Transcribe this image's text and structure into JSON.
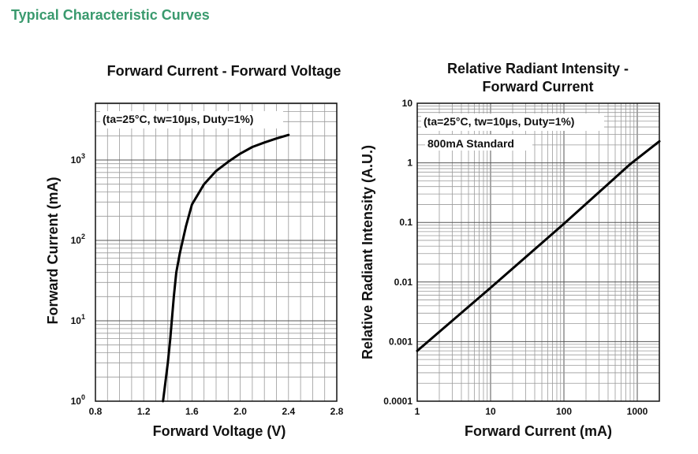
{
  "page": {
    "section_title": "Typical Characteristic Curves"
  },
  "chart_data": [
    {
      "type": "line",
      "title": "Forward Current - Forward Voltage",
      "xlabel": "Forward Voltage (V)",
      "ylabel": "Forward Current (mA)",
      "annotation": "(ta=25°C, tw=10µs, Duty=1%)",
      "xscale": "linear",
      "yscale": "log",
      "xlim": [
        0.8,
        2.8
      ],
      "ylim": [
        1,
        5000
      ],
      "x_ticks": [
        "0.8",
        "1.2",
        "1.6",
        "2.0",
        "2.4",
        "2.8"
      ],
      "y_ticks": [
        {
          "value": 1,
          "base": "10",
          "exp": "0"
        },
        {
          "value": 10,
          "base": "10",
          "exp": "1"
        },
        {
          "value": 100,
          "base": "10",
          "exp": "2"
        },
        {
          "value": 1000,
          "base": "10",
          "exp": "3"
        }
      ],
      "grid": true,
      "series": [
        {
          "x": [
            1.36,
            1.4,
            1.42,
            1.45,
            1.47,
            1.5,
            1.55,
            1.6,
            1.7,
            1.8,
            1.9,
            2.0,
            2.1,
            2.2,
            2.3,
            2.4
          ],
          "y": [
            1,
            3,
            6,
            20,
            40,
            70,
            150,
            280,
            500,
            730,
            950,
            1200,
            1450,
            1650,
            1850,
            2050
          ]
        }
      ]
    },
    {
      "type": "line",
      "title": [
        "Relative Radiant Intensity -",
        "Forward Current"
      ],
      "xlabel": "Forward Current (mA)",
      "ylabel": "Relative Radiant Intensity (A.U.)",
      "annotations": [
        "(ta=25°C, tw=10µs, Duty=1%)",
        "800mA Standard"
      ],
      "xscale": "log",
      "yscale": "log",
      "xlim": [
        1,
        2000
      ],
      "ylim": [
        0.0001,
        10
      ],
      "x_ticks": [
        {
          "value": 1,
          "label": "1"
        },
        {
          "value": 10,
          "label": "10"
        },
        {
          "value": 100,
          "label": "100"
        },
        {
          "value": 1000,
          "label": "1000"
        }
      ],
      "y_ticks": [
        {
          "value": 0.0001,
          "label": "0.0001"
        },
        {
          "value": 0.001,
          "label": "0.001"
        },
        {
          "value": 0.01,
          "label": "0.01"
        },
        {
          "value": 0.1,
          "label": "0.1"
        },
        {
          "value": 1,
          "label": "1"
        },
        {
          "value": 10,
          "label": "10"
        }
      ],
      "grid": true,
      "series": [
        {
          "x": [
            1,
            10,
            100,
            800,
            2000
          ],
          "y": [
            0.0007,
            0.008,
            0.095,
            0.95,
            2.3
          ]
        }
      ]
    }
  ]
}
